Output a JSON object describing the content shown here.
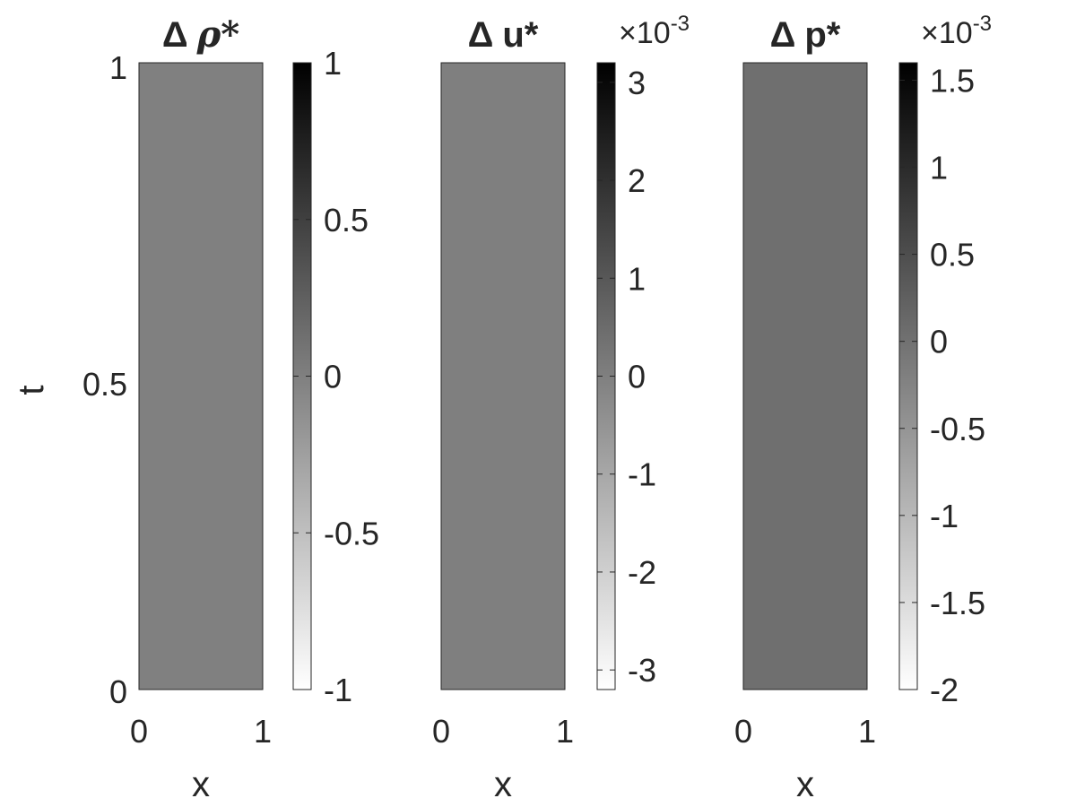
{
  "chart_data": [
    {
      "type": "heatmap",
      "title_prefix": "Δ",
      "title_symbol": "ρ*",
      "xlabel": "x",
      "ylabel": "t",
      "xlim": [
        0,
        1
      ],
      "ylim": [
        0,
        1
      ],
      "x_ticks": [
        "0",
        "1"
      ],
      "y_ticks": [
        "0",
        "0.5",
        "1"
      ],
      "field": "uniform",
      "colormap": "gray",
      "colorbar": {
        "range": [
          -1,
          1
        ],
        "ticks": [
          "-1",
          "-0.5",
          "0",
          "0.5",
          "1"
        ],
        "tick_values": [
          -1,
          -0.5,
          0,
          0.5,
          1
        ],
        "exponent_label": ""
      }
    },
    {
      "type": "heatmap",
      "title_prefix": "Δ",
      "title_symbol": "u*",
      "xlabel": "x",
      "xlim": [
        0,
        1
      ],
      "ylim": [
        0,
        1
      ],
      "x_ticks": [
        "0",
        "1"
      ],
      "field": "wave-diamond",
      "colormap": "gray",
      "colorbar": {
        "range": [
          -3.2,
          3.2
        ],
        "ticks": [
          "-3",
          "-2",
          "-1",
          "0",
          "1",
          "2",
          "3"
        ],
        "tick_values": [
          -3,
          -2,
          -1,
          0,
          1,
          2,
          3
        ],
        "exponent_label": "×10",
        "exponent": "-3"
      }
    },
    {
      "type": "heatmap",
      "title_prefix": "Δ",
      "title_symbol": "p*",
      "xlabel": "x",
      "xlim": [
        0,
        1
      ],
      "ylim": [
        0,
        1
      ],
      "x_ticks": [
        "0",
        "1"
      ],
      "field": "wave-diamond",
      "colormap": "gray",
      "colorbar": {
        "range": [
          -2,
          1.6
        ],
        "ticks": [
          "-2",
          "-1.5",
          "-1",
          "-0.5",
          "0",
          "0.5",
          "1",
          "1.5"
        ],
        "tick_values": [
          -2,
          -1.5,
          -1,
          -0.5,
          0,
          0.5,
          1,
          1.5
        ],
        "exponent_label": "×10",
        "exponent": "-3"
      }
    }
  ]
}
